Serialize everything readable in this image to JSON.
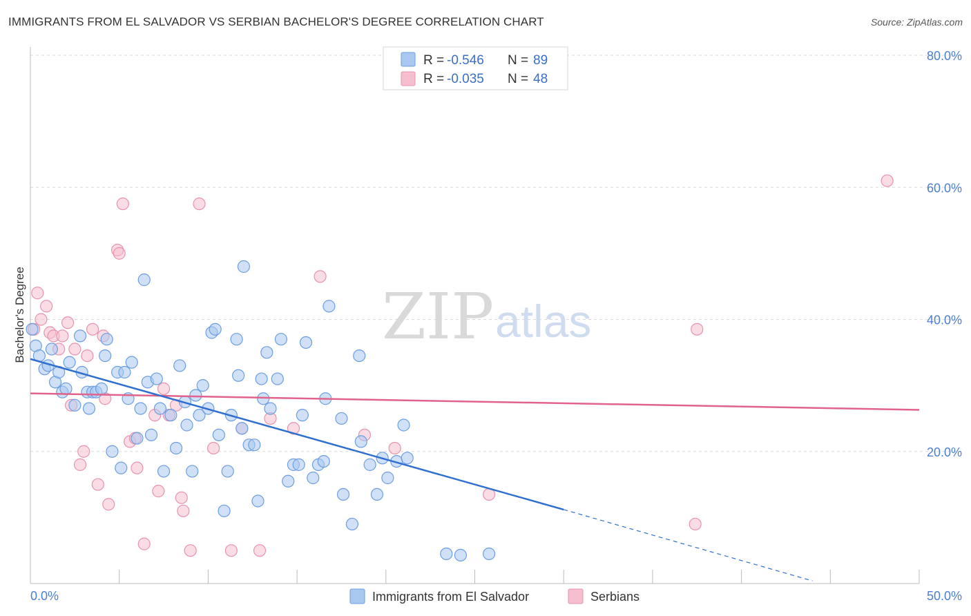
{
  "header": {
    "title": "IMMIGRANTS FROM EL SALVADOR VS SERBIAN BACHELOR'S DEGREE CORRELATION CHART",
    "source": "Source: ZipAtlas.com"
  },
  "watermark": {
    "zip": "ZIP",
    "atlas": "atlas"
  },
  "colors": {
    "blue_fill": "#a9c8f0",
    "blue_stroke": "#6b9ee0",
    "blue_line": "#2e6fd0",
    "pink_fill": "#f6bfd0",
    "pink_stroke": "#e892ad",
    "pink_line": "#e0628d",
    "grid": "#d8d8d8",
    "tick_label": "#4a7fd0"
  },
  "legend": {
    "rows": [
      {
        "r_label": "R =",
        "r_value": "-0.546",
        "n_label": "N =",
        "n_value": "89"
      },
      {
        "r_label": "R =",
        "r_value": "-0.035",
        "n_label": "N =",
        "n_value": "48"
      }
    ]
  },
  "bottom_legend": {
    "items": [
      {
        "label": "Immigrants from El Salvador"
      },
      {
        "label": "Serbians"
      }
    ]
  },
  "chart_data": {
    "type": "scatter",
    "title": "IMMIGRANTS FROM EL SALVADOR VS SERBIAN BACHELOR'S DEGREE CORRELATION CHART",
    "xlabel": "",
    "ylabel": "Bachelor's Degree",
    "xlim": [
      0,
      50
    ],
    "ylim": [
      0,
      80
    ],
    "x_tick_labels": [
      "0.0%",
      "50.0%"
    ],
    "y_ticks": [
      20,
      40,
      60,
      80
    ],
    "y_tick_labels": [
      "20.0%",
      "40.0%",
      "60.0%",
      "80.0%"
    ],
    "grid": true,
    "series": [
      {
        "name": "Immigrants from El Salvador",
        "color": "blue",
        "r": -0.546,
        "n": 89,
        "trend": {
          "x0": 0,
          "y0": 34.0,
          "x1": 30,
          "y1": 11.2,
          "dash_to_x": 44,
          "dash_to_y": 0.4
        },
        "points": [
          [
            0.1,
            38.5
          ],
          [
            0.3,
            36.0
          ],
          [
            0.5,
            34.5
          ],
          [
            0.8,
            32.5
          ],
          [
            1.0,
            33.0
          ],
          [
            1.2,
            35.5
          ],
          [
            1.4,
            30.5
          ],
          [
            1.6,
            32.0
          ],
          [
            1.8,
            29.0
          ],
          [
            2.0,
            29.5
          ],
          [
            2.2,
            33.5
          ],
          [
            2.5,
            27.0
          ],
          [
            2.8,
            37.5
          ],
          [
            2.9,
            32.0
          ],
          [
            3.2,
            29.0
          ],
          [
            3.3,
            26.5
          ],
          [
            3.5,
            29.0
          ],
          [
            3.7,
            29.0
          ],
          [
            4.0,
            29.5
          ],
          [
            4.2,
            34.5
          ],
          [
            4.3,
            37.0
          ],
          [
            4.6,
            20.0
          ],
          [
            4.9,
            32.0
          ],
          [
            5.1,
            17.5
          ],
          [
            5.3,
            32.0
          ],
          [
            5.5,
            28.0
          ],
          [
            5.7,
            33.5
          ],
          [
            6.0,
            22.0
          ],
          [
            6.2,
            26.5
          ],
          [
            6.4,
            46.0
          ],
          [
            6.6,
            30.5
          ],
          [
            6.8,
            22.5
          ],
          [
            7.1,
            31.0
          ],
          [
            7.3,
            26.5
          ],
          [
            7.5,
            17.0
          ],
          [
            7.9,
            25.5
          ],
          [
            8.2,
            20.5
          ],
          [
            8.4,
            33.0
          ],
          [
            8.7,
            27.5
          ],
          [
            8.8,
            24.0
          ],
          [
            9.1,
            17.0
          ],
          [
            9.3,
            28.5
          ],
          [
            9.5,
            25.5
          ],
          [
            9.7,
            30.0
          ],
          [
            10.0,
            26.5
          ],
          [
            10.2,
            38.0
          ],
          [
            10.4,
            38.5
          ],
          [
            10.6,
            22.5
          ],
          [
            10.9,
            11.0
          ],
          [
            11.1,
            17.0
          ],
          [
            11.3,
            25.5
          ],
          [
            11.6,
            37.0
          ],
          [
            11.7,
            31.5
          ],
          [
            11.9,
            23.5
          ],
          [
            12.0,
            48.0
          ],
          [
            12.3,
            21.0
          ],
          [
            12.6,
            21.0
          ],
          [
            12.8,
            12.5
          ],
          [
            13.0,
            31.0
          ],
          [
            13.1,
            28.0
          ],
          [
            13.3,
            35.0
          ],
          [
            13.5,
            26.5
          ],
          [
            13.9,
            31.0
          ],
          [
            14.1,
            37.0
          ],
          [
            14.5,
            15.5
          ],
          [
            14.8,
            18.0
          ],
          [
            15.1,
            18.0
          ],
          [
            15.3,
            25.5
          ],
          [
            15.5,
            36.5
          ],
          [
            15.9,
            16.0
          ],
          [
            16.2,
            18.0
          ],
          [
            16.5,
            18.5
          ],
          [
            16.6,
            28.0
          ],
          [
            16.8,
            42.0
          ],
          [
            17.5,
            25.0
          ],
          [
            17.6,
            13.5
          ],
          [
            18.1,
            9.0
          ],
          [
            18.5,
            34.5
          ],
          [
            18.6,
            21.5
          ],
          [
            19.1,
            18.0
          ],
          [
            19.5,
            13.5
          ],
          [
            19.8,
            19.0
          ],
          [
            20.1,
            16.0
          ],
          [
            20.6,
            18.5
          ],
          [
            21.0,
            24.0
          ],
          [
            23.4,
            4.5
          ],
          [
            24.2,
            4.3
          ],
          [
            25.8,
            4.5
          ],
          [
            21.2,
            19.0
          ]
        ]
      },
      {
        "name": "Serbians",
        "color": "pink",
        "r": -0.035,
        "n": 48,
        "trend": {
          "x0": 0,
          "y0": 28.8,
          "x1": 50,
          "y1": 26.3
        },
        "points": [
          [
            0.2,
            38.5
          ],
          [
            0.4,
            44.0
          ],
          [
            0.6,
            40.0
          ],
          [
            0.9,
            42.0
          ],
          [
            1.1,
            38.0
          ],
          [
            1.3,
            37.5
          ],
          [
            1.6,
            35.5
          ],
          [
            1.8,
            37.5
          ],
          [
            2.1,
            39.5
          ],
          [
            2.3,
            27.0
          ],
          [
            2.5,
            35.5
          ],
          [
            2.8,
            18.0
          ],
          [
            3.0,
            20.0
          ],
          [
            3.2,
            34.5
          ],
          [
            3.5,
            38.5
          ],
          [
            3.8,
            15.0
          ],
          [
            4.1,
            37.5
          ],
          [
            4.2,
            28.0
          ],
          [
            4.4,
            12.0
          ],
          [
            4.9,
            50.5
          ],
          [
            5.0,
            50.0
          ],
          [
            5.2,
            57.5
          ],
          [
            5.6,
            21.5
          ],
          [
            5.9,
            22.0
          ],
          [
            6.0,
            17.5
          ],
          [
            6.4,
            6.0
          ],
          [
            7.0,
            25.5
          ],
          [
            7.2,
            14.0
          ],
          [
            7.5,
            29.5
          ],
          [
            7.8,
            25.5
          ],
          [
            8.2,
            27.0
          ],
          [
            8.5,
            13.0
          ],
          [
            8.6,
            11.0
          ],
          [
            9.0,
            5.0
          ],
          [
            9.5,
            57.5
          ],
          [
            10.3,
            20.5
          ],
          [
            11.3,
            5.0
          ],
          [
            11.9,
            23.5
          ],
          [
            12.9,
            5.0
          ],
          [
            13.5,
            25.0
          ],
          [
            14.8,
            23.5
          ],
          [
            16.3,
            46.5
          ],
          [
            18.8,
            22.5
          ],
          [
            20.5,
            20.5
          ],
          [
            25.8,
            13.5
          ],
          [
            37.5,
            38.5
          ],
          [
            37.4,
            9.0
          ],
          [
            48.2,
            61.0
          ]
        ]
      }
    ]
  }
}
